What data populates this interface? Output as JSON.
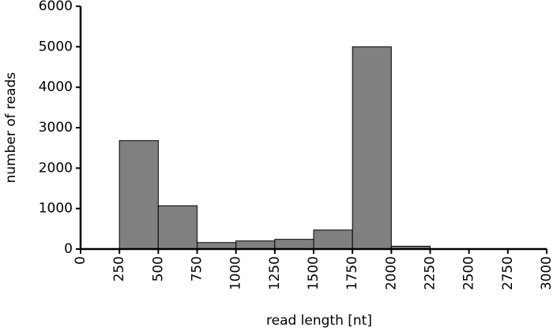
{
  "chart_data": {
    "type": "histogram",
    "x_label": "read length [nt]",
    "y_label": "number of reads",
    "bins": [
      0,
      250,
      500,
      750,
      1000,
      1250,
      1500,
      1750,
      2000,
      2250,
      2500,
      2750,
      3000
    ],
    "values": [
      0,
      2680,
      1070,
      160,
      200,
      240,
      470,
      5000,
      70,
      0,
      0,
      0
    ],
    "color": "#808080",
    "edge_color": "#000000",
    "xlim": [
      0,
      3000
    ],
    "xticks": [
      0,
      250,
      500,
      750,
      1000,
      1250,
      1500,
      1750,
      2000,
      2250,
      2500,
      2750,
      3000
    ],
    "ylim": [
      0,
      6000
    ],
    "yticks": [
      0,
      1000,
      2000,
      3000,
      4000,
      5000,
      6000
    ],
    "grid": false
  }
}
